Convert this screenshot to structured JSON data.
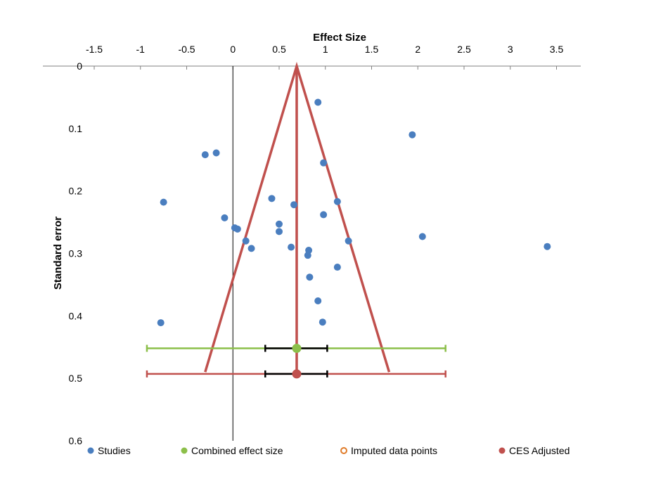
{
  "chart_data": {
    "type": "scatter",
    "title": "",
    "xlabel": "Effect Size",
    "ylabel": "Standard error",
    "xlim": [
      -2,
      3.75
    ],
    "ylim": [
      0,
      0.6
    ],
    "y_inverted": true,
    "x_axis_position": "top",
    "x_ticks": [
      -1.5,
      -1,
      -0.5,
      0,
      0.5,
      1,
      1.5,
      2,
      2.5,
      3,
      3.5
    ],
    "x_tick_labels": [
      "-1.5",
      "-1",
      "-0.5",
      "0",
      "0.5",
      "1",
      "1.5",
      "2",
      "2.5",
      "3",
      "3.5"
    ],
    "y_ticks": [
      0,
      0.1,
      0.2,
      0.3,
      0.4,
      0.5,
      0.6
    ],
    "y_tick_labels": [
      "0",
      "0.1",
      "0.2",
      "0.3",
      "0.4",
      "0.5",
      "0.6"
    ],
    "grid": false,
    "legend_position": "bottom",
    "colors": {
      "studies": "#4a7ebf",
      "combined": "#8cbf4a",
      "imputed": "#e07b28",
      "adjusted": "#c0504d",
      "zero_line": "#000000",
      "axis": "#808080",
      "ci_bar": "#000000"
    },
    "series": [
      {
        "name": "Studies",
        "points": [
          {
            "x": 0.92,
            "y": 0.058
          },
          {
            "x": 1.94,
            "y": 0.11
          },
          {
            "x": -0.3,
            "y": 0.142
          },
          {
            "x": -0.18,
            "y": 0.139
          },
          {
            "x": 0.98,
            "y": 0.155
          },
          {
            "x": -0.75,
            "y": 0.218
          },
          {
            "x": 0.42,
            "y": 0.212
          },
          {
            "x": 0.66,
            "y": 0.222
          },
          {
            "x": 1.13,
            "y": 0.217
          },
          {
            "x": 0.98,
            "y": 0.238
          },
          {
            "x": -0.09,
            "y": 0.243
          },
          {
            "x": 0.02,
            "y": 0.259
          },
          {
            "x": 0.05,
            "y": 0.261
          },
          {
            "x": 0.5,
            "y": 0.253
          },
          {
            "x": 0.5,
            "y": 0.265
          },
          {
            "x": 2.05,
            "y": 0.273
          },
          {
            "x": 0.14,
            "y": 0.28
          },
          {
            "x": 0.2,
            "y": 0.292
          },
          {
            "x": 1.25,
            "y": 0.28
          },
          {
            "x": 0.63,
            "y": 0.29
          },
          {
            "x": 0.82,
            "y": 0.295
          },
          {
            "x": 0.81,
            "y": 0.303
          },
          {
            "x": 3.4,
            "y": 0.289
          },
          {
            "x": 1.13,
            "y": 0.322
          },
          {
            "x": 0.83,
            "y": 0.338
          },
          {
            "x": 0.92,
            "y": 0.376
          },
          {
            "x": -0.78,
            "y": 0.411
          },
          {
            "x": 0.97,
            "y": 0.41
          }
        ]
      },
      {
        "name": "Combined effect size",
        "point": {
          "x": 0.69,
          "y": 0.452
        },
        "ci_inner": [
          0.35,
          1.02
        ],
        "ci_outer": [
          -0.93,
          2.3
        ]
      },
      {
        "name": "Imputed data points",
        "points": []
      },
      {
        "name": "CES Adjusted",
        "point": {
          "x": 0.69,
          "y": 0.493
        },
        "ci_inner": [
          0.35,
          1.02
        ],
        "ci_outer": [
          -0.93,
          2.3
        ]
      }
    ],
    "funnel": {
      "apex": {
        "x": 0.69,
        "y": 0
      },
      "base_y": 0.49,
      "base_left": -0.3,
      "base_right": 1.69,
      "center_x": 0.69
    },
    "zero_line_x": 0
  }
}
